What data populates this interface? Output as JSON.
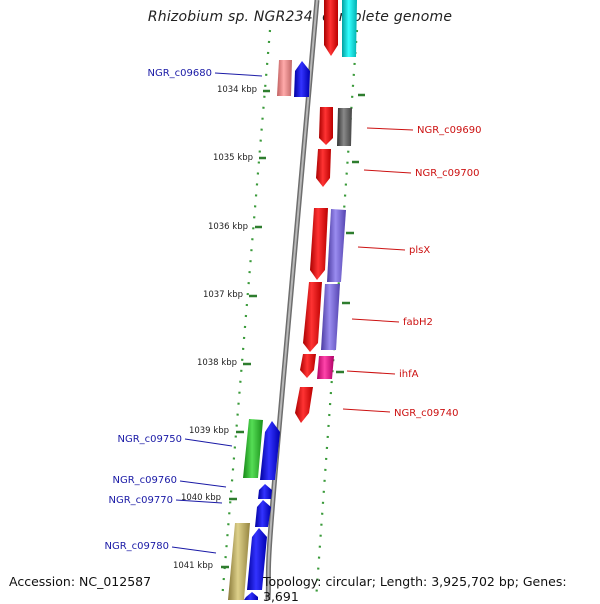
{
  "title": "Rhizobium sp. NGR234, complete genome",
  "footer": {
    "accession": "Accession: NC_012587",
    "topology": "Topology: circular; Length: 3,925,702 bp; Genes: 3,691"
  },
  "colors": {
    "background": "#ffffff",
    "backbone": "#8a8a8a",
    "ruler_dots": "#3a9a3a",
    "tick_mark": "#2e7d2e",
    "label_left": "#1a1aa6",
    "label_right": "#cc1111",
    "red_gene": "#e41a1c",
    "blue_gene": "#1111ee",
    "cyan_gene": "#00e0e0",
    "pink_gene": "#f08a8a",
    "gray_gene": "#666666",
    "purple_gene": "#7b6bd6",
    "magenta_gene": "#ee2288",
    "green_gene": "#33bb33",
    "khaki_gene": "#c8b86a"
  },
  "kbp_ticks": [
    {
      "label": "1034 kbp"
    },
    {
      "label": "1035 kbp"
    },
    {
      "label": "1036 kbp"
    },
    {
      "label": "1037 kbp"
    },
    {
      "label": "1038 kbp"
    },
    {
      "label": "1039 kbp"
    },
    {
      "label": "1040 kbp"
    },
    {
      "label": "1041 kbp"
    }
  ],
  "gene_labels_left": [
    "NGR_c09680",
    "NGR_c09750",
    "NGR_c09760",
    "NGR_c09770",
    "NGR_c09780"
  ],
  "gene_labels_right": [
    "NGR_c09690",
    "NGR_c09700",
    "plsX",
    "fabH2",
    "ihfA",
    "NGR_c09740"
  ]
}
